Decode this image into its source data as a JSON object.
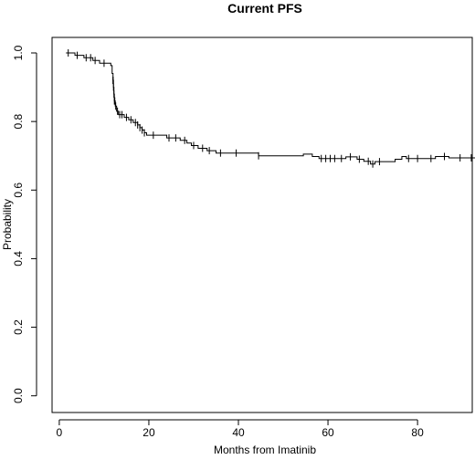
{
  "chart_data": {
    "type": "line",
    "subtype": "kaplan-meier-step",
    "title": "Current PFS",
    "xlabel": "Months from Imatinib",
    "ylabel": "Probability",
    "xlim": [
      0,
      92
    ],
    "ylim": [
      0.0,
      1.0
    ],
    "x_ticks": [
      0,
      20,
      40,
      60,
      80
    ],
    "y_ticks": [
      0.0,
      0.2,
      0.4,
      0.6,
      0.8,
      1.0
    ],
    "x_tick_labels": [
      "0",
      "20",
      "40",
      "60",
      "80"
    ],
    "y_tick_labels": [
      "0.0",
      "0.2",
      "0.4",
      "0.6",
      "0.8",
      "1.0"
    ],
    "grid": false,
    "legend": false,
    "series": [
      {
        "steps": [
          [
            1.5,
            1.0
          ],
          [
            3.5,
            0.993
          ],
          [
            5.5,
            0.986
          ],
          [
            7.5,
            0.978
          ],
          [
            9.0,
            0.97
          ],
          [
            11.5,
            0.963
          ],
          [
            11.8,
            0.94
          ],
          [
            12.0,
            0.92
          ],
          [
            12.1,
            0.9
          ],
          [
            12.2,
            0.88
          ],
          [
            12.3,
            0.86
          ],
          [
            12.5,
            0.845
          ],
          [
            12.8,
            0.83
          ],
          [
            13.2,
            0.82
          ],
          [
            14.5,
            0.812
          ],
          [
            15.5,
            0.805
          ],
          [
            16.5,
            0.797
          ],
          [
            17.5,
            0.79
          ],
          [
            18.0,
            0.782
          ],
          [
            18.5,
            0.775
          ],
          [
            19.0,
            0.767
          ],
          [
            19.5,
            0.76
          ],
          [
            24.0,
            0.752
          ],
          [
            27.0,
            0.745
          ],
          [
            28.5,
            0.737
          ],
          [
            29.5,
            0.73
          ],
          [
            31.0,
            0.722
          ],
          [
            33.0,
            0.715
          ],
          [
            35.0,
            0.708
          ],
          [
            44.5,
            0.7
          ],
          [
            54.5,
            0.705
          ],
          [
            56.5,
            0.698
          ],
          [
            58.0,
            0.692
          ],
          [
            64.0,
            0.697
          ],
          [
            66.5,
            0.69
          ],
          [
            68.0,
            0.684
          ],
          [
            69.5,
            0.676
          ],
          [
            70.5,
            0.683
          ],
          [
            75.0,
            0.69
          ],
          [
            76.5,
            0.698
          ],
          [
            77.5,
            0.692
          ],
          [
            84.0,
            0.698
          ],
          [
            87.0,
            0.694
          ],
          [
            93.0,
            0.694
          ]
        ],
        "censor_times": [
          2.0,
          4.0,
          6.0,
          7.0,
          8.0,
          10.0,
          12.0,
          12.0,
          12.1,
          12.2,
          12.3,
          12.4,
          12.6,
          13.0,
          13.5,
          14.0,
          15.0,
          16.0,
          17.0,
          17.5,
          18.0,
          18.5,
          19.0,
          21.0,
          24.5,
          26.0,
          28.0,
          30.0,
          32.0,
          33.5,
          36.0,
          39.5,
          44.5,
          58.5,
          59.5,
          60.5,
          61.5,
          63.0,
          65.0,
          67.0,
          69.0,
          70.0,
          71.5,
          78.0,
          80.0,
          83.0,
          86.0,
          89.5,
          92.0
        ]
      }
    ]
  }
}
